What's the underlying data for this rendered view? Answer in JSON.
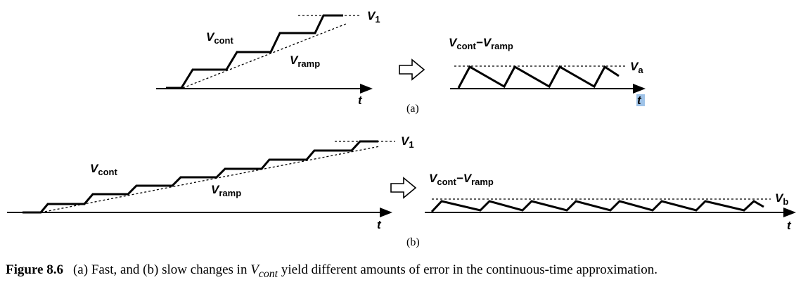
{
  "panel_a": {
    "tag": "(a)",
    "left": {
      "vcont": {
        "main": "V",
        "sub": "cont"
      },
      "vramp": {
        "main": "V",
        "sub": "ramp"
      },
      "v1": {
        "main": "V",
        "sub": "1"
      },
      "t": "t"
    },
    "right": {
      "diff": {
        "a": "V",
        "asub": "cont",
        "dash": "−",
        "b": "V",
        "bsub": "ramp"
      },
      "va": {
        "main": "V",
        "sub": "a"
      },
      "t": "t"
    }
  },
  "panel_b": {
    "tag": "(b)",
    "left": {
      "vcont": {
        "main": "V",
        "sub": "cont"
      },
      "vramp": {
        "main": "V",
        "sub": "ramp"
      },
      "v1": {
        "main": "V",
        "sub": "1"
      },
      "t": "t"
    },
    "right": {
      "diff": {
        "a": "V",
        "asub": "cont",
        "dash": "−",
        "b": "V",
        "bsub": "ramp"
      },
      "vb": {
        "main": "V",
        "sub": "b"
      },
      "t": "t"
    }
  },
  "caption": {
    "figure_number": "Figure 8.6",
    "text_before": "(a) Fast, and (b) slow changes in ",
    "variable": "V",
    "variable_sub": "cont",
    "text_after": " yield different amounts of error in the continuous-time approximation."
  }
}
